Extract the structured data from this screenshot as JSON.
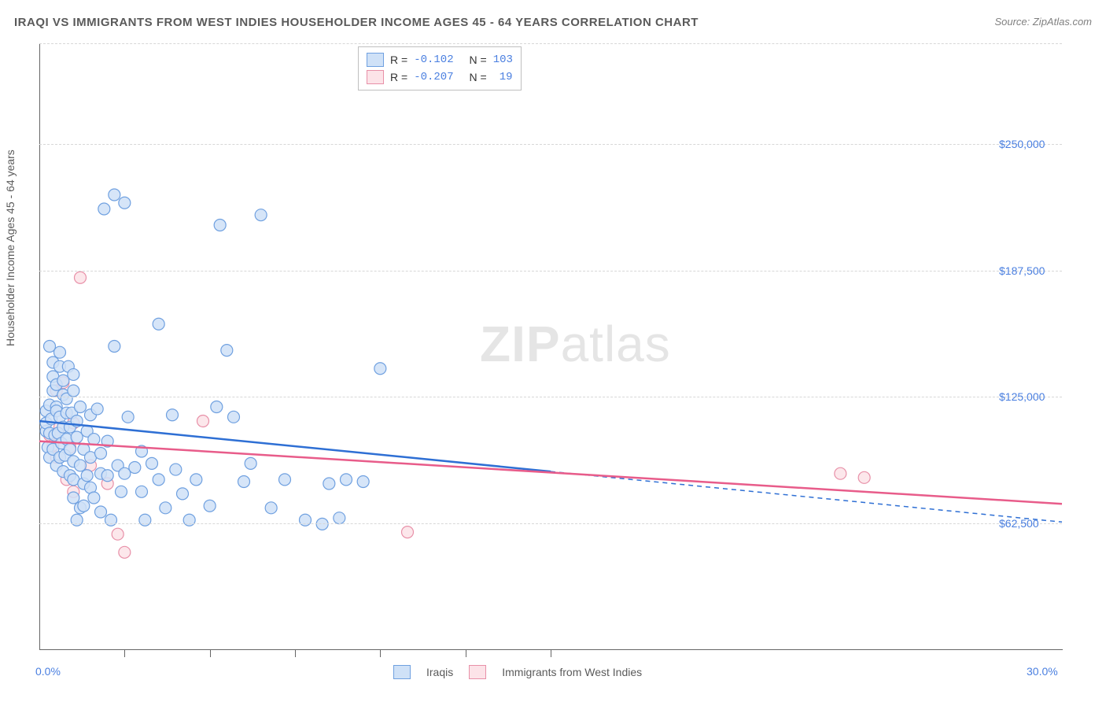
{
  "title": "IRAQI VS IMMIGRANTS FROM WEST INDIES HOUSEHOLDER INCOME AGES 45 - 64 YEARS CORRELATION CHART",
  "source": "Source: ZipAtlas.com",
  "watermark1": "ZIP",
  "watermark2": "atlas",
  "ylabel": "Householder Income Ages 45 - 64 years",
  "chart": {
    "type": "scatter",
    "background_color": "#ffffff",
    "grid_color": "#d7d7d7",
    "axis_color": "#666666",
    "x_domain": [
      0,
      30
    ],
    "y_domain": [
      0,
      300000
    ],
    "x_ticks": [
      0,
      2.5,
      5,
      7.5,
      10,
      12.5,
      15,
      30
    ],
    "x_tick_labels": {
      "0": "0.0%",
      "30": "30.0%"
    },
    "y_gridlines": [
      62500,
      125000,
      187500,
      250000,
      300000
    ],
    "y_tick_labels": {
      "62500": "$62,500",
      "125000": "$125,000",
      "187500": "$187,500",
      "250000": "$250,000"
    },
    "marker_radius": 7.5,
    "marker_stroke_width": 1.2,
    "line_width": 2.5,
    "series": [
      {
        "name": "Iraqis",
        "fill": "#cfe1f7",
        "stroke": "#6fa0e0",
        "line_color": "#2e6fd4",
        "R": "-0.102",
        "N": "103",
        "trend_solid": [
          [
            0,
            113000
          ],
          [
            15,
            88000
          ]
        ],
        "trend_dash": [
          [
            15,
            88000
          ],
          [
            30,
            63000
          ]
        ],
        "points": [
          [
            0.2,
            108000
          ],
          [
            0.2,
            112000
          ],
          [
            0.2,
            118000
          ],
          [
            0.25,
            100000
          ],
          [
            0.3,
            107000
          ],
          [
            0.3,
            95000
          ],
          [
            0.3,
            121000
          ],
          [
            0.35,
            114000
          ],
          [
            0.4,
            99000
          ],
          [
            0.4,
            128000
          ],
          [
            0.4,
            135000
          ],
          [
            0.4,
            142000
          ],
          [
            0.45,
            106000
          ],
          [
            0.5,
            91000
          ],
          [
            0.5,
            120000
          ],
          [
            0.5,
            131000
          ],
          [
            0.5,
            118000
          ],
          [
            0.55,
            107000
          ],
          [
            0.6,
            147000
          ],
          [
            0.6,
            140000
          ],
          [
            0.6,
            115000
          ],
          [
            0.6,
            95000
          ],
          [
            0.65,
            102000
          ],
          [
            0.7,
            110000
          ],
          [
            0.7,
            126000
          ],
          [
            0.7,
            88000
          ],
          [
            0.7,
            133000
          ],
          [
            0.75,
            96000
          ],
          [
            0.8,
            117000
          ],
          [
            0.8,
            124000
          ],
          [
            0.8,
            104000
          ],
          [
            0.85,
            140000
          ],
          [
            0.9,
            110000
          ],
          [
            0.9,
            99000
          ],
          [
            0.9,
            86000
          ],
          [
            0.95,
            117000
          ],
          [
            1.0,
            84000
          ],
          [
            1.0,
            93000
          ],
          [
            1.0,
            75000
          ],
          [
            1.0,
            128000
          ],
          [
            1.1,
            64000
          ],
          [
            1.1,
            105000
          ],
          [
            1.1,
            113000
          ],
          [
            1.2,
            70000
          ],
          [
            1.2,
            91000
          ],
          [
            1.2,
            120000
          ],
          [
            1.3,
            82000
          ],
          [
            1.3,
            99000
          ],
          [
            1.3,
            71000
          ],
          [
            1.4,
            86000
          ],
          [
            1.4,
            108000
          ],
          [
            1.5,
            80000
          ],
          [
            1.5,
            95000
          ],
          [
            1.5,
            116000
          ],
          [
            1.6,
            75000
          ],
          [
            1.6,
            104000
          ],
          [
            1.7,
            119000
          ],
          [
            1.8,
            87000
          ],
          [
            1.8,
            97000
          ],
          [
            1.8,
            68000
          ],
          [
            1.9,
            218000
          ],
          [
            2.0,
            103000
          ],
          [
            2.0,
            86000
          ],
          [
            2.1,
            64000
          ],
          [
            2.2,
            225000
          ],
          [
            2.2,
            150000
          ],
          [
            2.3,
            91000
          ],
          [
            2.4,
            78000
          ],
          [
            2.5,
            87000
          ],
          [
            2.5,
            221000
          ],
          [
            2.6,
            115000
          ],
          [
            2.8,
            90000
          ],
          [
            3.0,
            78000
          ],
          [
            3.0,
            98000
          ],
          [
            3.1,
            64000
          ],
          [
            3.3,
            92000
          ],
          [
            3.5,
            84000
          ],
          [
            3.5,
            161000
          ],
          [
            3.7,
            70000
          ],
          [
            3.9,
            116000
          ],
          [
            4.0,
            89000
          ],
          [
            4.2,
            77000
          ],
          [
            4.4,
            64000
          ],
          [
            4.6,
            84000
          ],
          [
            5.0,
            71000
          ],
          [
            5.2,
            120000
          ],
          [
            5.3,
            210000
          ],
          [
            5.5,
            148000
          ],
          [
            5.7,
            115000
          ],
          [
            6.0,
            83000
          ],
          [
            6.2,
            92000
          ],
          [
            6.5,
            215000
          ],
          [
            6.8,
            70000
          ],
          [
            7.2,
            84000
          ],
          [
            7.8,
            64000
          ],
          [
            8.3,
            62000
          ],
          [
            8.5,
            82000
          ],
          [
            8.8,
            65000
          ],
          [
            9.0,
            84000
          ],
          [
            9.5,
            83000
          ],
          [
            10.0,
            139000
          ],
          [
            0.3,
            150000
          ],
          [
            1.0,
            136000
          ]
        ]
      },
      {
        "name": "Immigrants from West Indies",
        "fill": "#fce3e8",
        "stroke": "#e890a8",
        "line_color": "#e85c8a",
        "R": "-0.207",
        "N": "19",
        "trend_solid": [
          [
            0,
            103000
          ],
          [
            30,
            72000
          ]
        ],
        "trend_dash": null,
        "points": [
          [
            0.3,
            106000
          ],
          [
            0.4,
            101000
          ],
          [
            0.5,
            95000
          ],
          [
            0.5,
            128000
          ],
          [
            0.6,
            110000
          ],
          [
            0.7,
            132000
          ],
          [
            0.8,
            84000
          ],
          [
            0.9,
            100000
          ],
          [
            1.0,
            78000
          ],
          [
            1.0,
            112000
          ],
          [
            1.2,
            184000
          ],
          [
            1.5,
            91000
          ],
          [
            2.0,
            82000
          ],
          [
            2.3,
            57000
          ],
          [
            2.5,
            48000
          ],
          [
            4.8,
            113000
          ],
          [
            10.8,
            58000
          ],
          [
            23.5,
            87000
          ],
          [
            24.2,
            85000
          ]
        ]
      }
    ],
    "legend_labels": [
      "Iraqis",
      "Immigrants from West Indies"
    ],
    "corr_label_R": "R =",
    "corr_label_N": "N ="
  }
}
